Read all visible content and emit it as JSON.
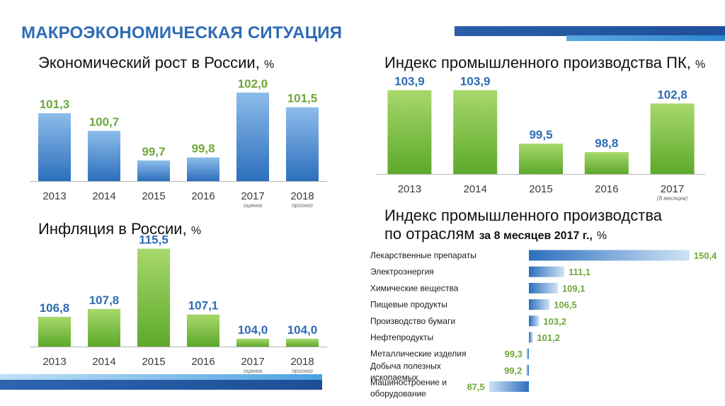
{
  "page": {
    "title": "МАКРОЭКОНОМИЧЕСКАЯ СИТУАЦИЯ"
  },
  "colors": {
    "blue_bar": "#4a89cf",
    "green_bar": "#7cc03f",
    "blue_text": "#2e6bb5",
    "green_text": "#6ea83a"
  },
  "chart_data": [
    {
      "id": "growth",
      "type": "bar",
      "title": "Экономический рост в России,",
      "unit": "%",
      "categories": [
        "2013",
        "2014",
        "2015",
        "2016",
        "2017",
        "2018"
      ],
      "notes": [
        "",
        "",
        "",
        "",
        "оценка",
        "прогноз"
      ],
      "values": [
        101.3,
        100.7,
        99.7,
        99.8,
        102.0,
        101.5
      ],
      "value_labels": [
        "101,3",
        "100,7",
        "99,7",
        "99,8",
        "102,0",
        "101,5"
      ],
      "bar_color": "blue",
      "label_color": "green",
      "ylim": [
        99.0,
        102.5
      ]
    },
    {
      "id": "inflation",
      "type": "bar",
      "title": "Инфляция в России,",
      "unit": "%",
      "categories": [
        "2013",
        "2014",
        "2015",
        "2016",
        "2017",
        "2018"
      ],
      "notes": [
        "",
        "",
        "",
        "",
        "оценка",
        "прогноз"
      ],
      "values": [
        106.8,
        107.8,
        115.5,
        107.1,
        104.0,
        104.0
      ],
      "value_labels": [
        "106,8",
        "107,8",
        "115,5",
        "107,1",
        "104,0",
        "104,0"
      ],
      "bar_color": "green",
      "label_color": "blue",
      "ylim": [
        103.0,
        116.0
      ]
    },
    {
      "id": "industrial",
      "type": "bar",
      "title": "Индекс промышленного производства ПК,",
      "unit": "%",
      "categories": [
        "2013",
        "2014",
        "2015",
        "2016",
        "2017"
      ],
      "notes": [
        "",
        "",
        "",
        "",
        "(8 месяцев)"
      ],
      "values": [
        103.9,
        103.9,
        99.5,
        98.8,
        102.8
      ],
      "value_labels": [
        "103,9",
        "103,9",
        "99,5",
        "98,8",
        "102,8"
      ],
      "bar_color": "green",
      "label_color": "blue",
      "ylim": [
        97.0,
        104.8
      ]
    },
    {
      "id": "sectors",
      "type": "bar",
      "orientation": "horizontal",
      "title_line1": "Индекс промышленного производства",
      "title_line2": "по отраслям",
      "subtitle": "за 8 месяцев 2017 г.,",
      "unit": "%",
      "baseline": 100,
      "categories": [
        "Лекарственные препараты",
        "Электроэнергия",
        "Химические вещества",
        "Пищевые продукты",
        "Производство бумаги",
        "Нефтепродукты",
        "Металлические изделия",
        "Добыча полезных ископаемых",
        "Машиностроение и оборудование"
      ],
      "values": [
        150.4,
        111.1,
        109.1,
        106.5,
        103.2,
        101.2,
        99.3,
        99.2,
        87.5
      ],
      "value_labels": [
        "150,4",
        "111,1",
        "109,1",
        "106,5",
        "103,2",
        "101,2",
        "99,3",
        "99,2",
        "87,5"
      ]
    }
  ]
}
